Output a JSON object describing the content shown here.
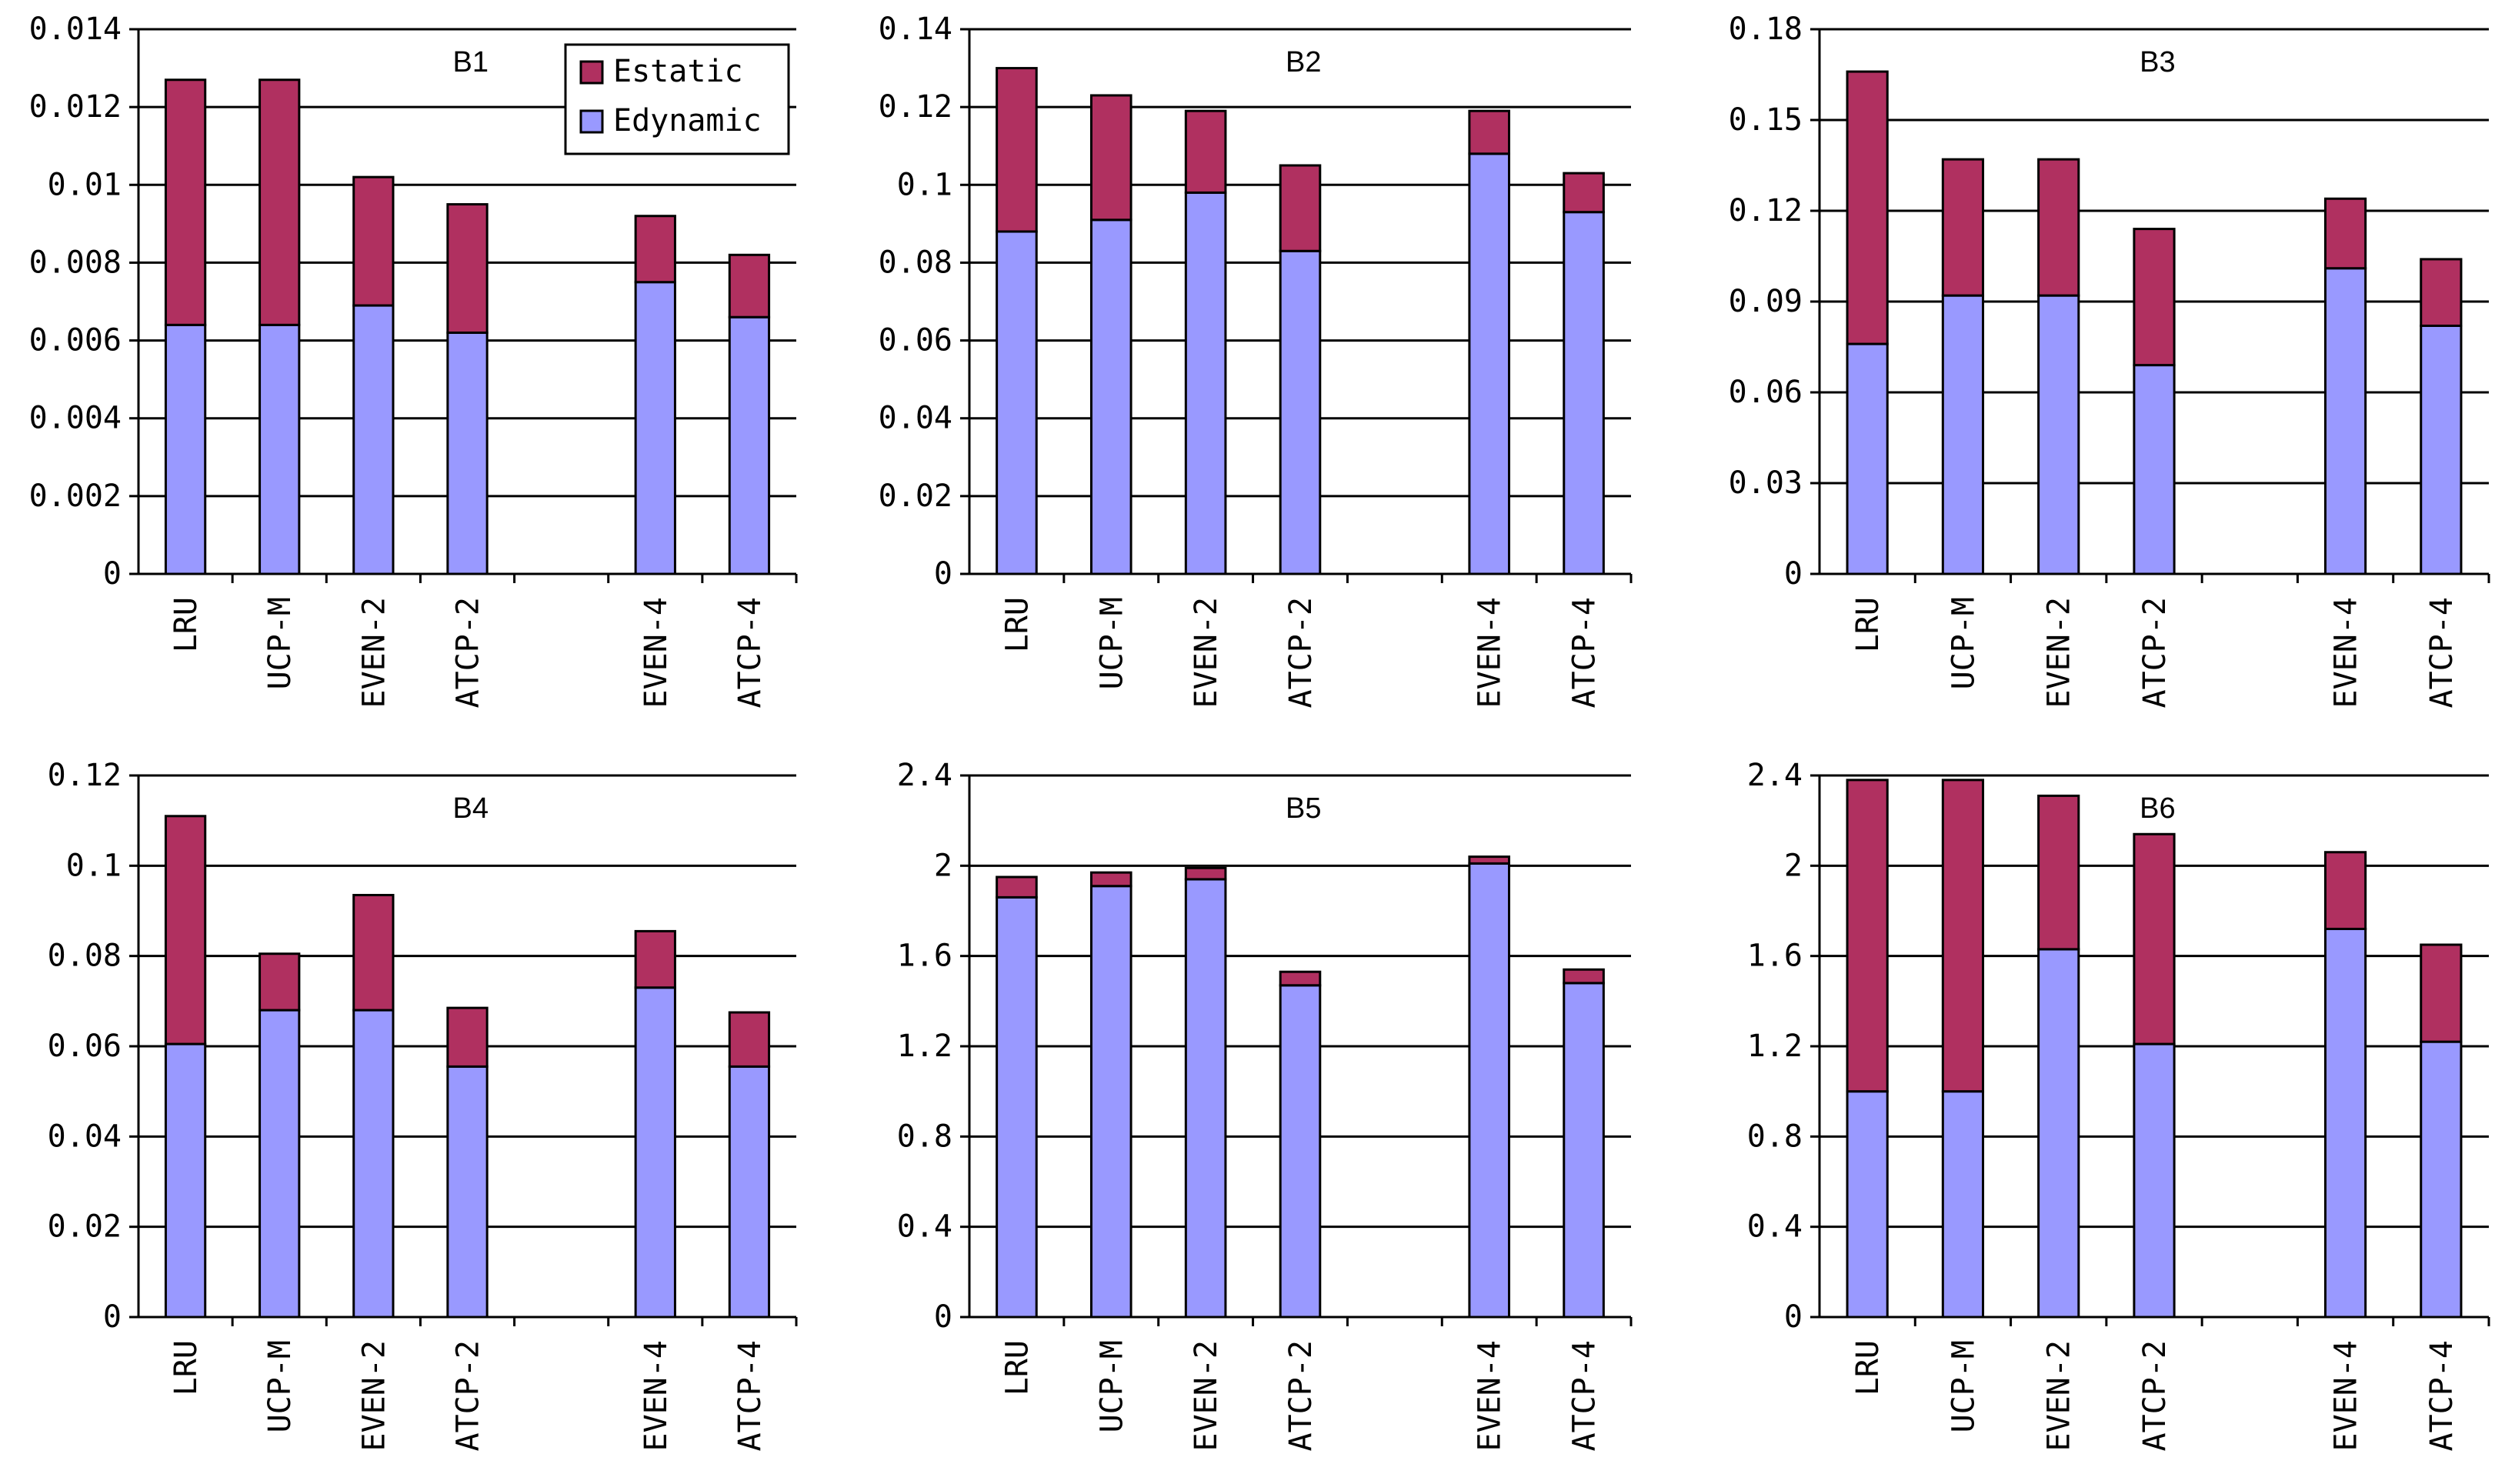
{
  "colors": {
    "static": "#b03060",
    "dynamic": "#9999ff",
    "axis": "#000000",
    "background": "#ffffff"
  },
  "legend": {
    "items": [
      {
        "label": "Estatic",
        "series": "static"
      },
      {
        "label": "Edynamic",
        "series": "dynamic"
      }
    ],
    "position": "top-right of panel B1"
  },
  "chart_data": [
    {
      "type": "bar",
      "stacked": true,
      "title": "B1",
      "categories": [
        "LRU",
        "UCP-M",
        "EVEN-2",
        "ATCP-2",
        "",
        "EVEN-4",
        "ATCP-4"
      ],
      "series": [
        {
          "name": "Edynamic",
          "values": [
            0.0064,
            0.0064,
            0.0069,
            0.0062,
            null,
            0.0075,
            0.0066
          ]
        },
        {
          "name": "Estatic",
          "values": [
            0.0063,
            0.0063,
            0.0033,
            0.0033,
            null,
            0.0017,
            0.0016
          ]
        }
      ],
      "ylim": [
        0,
        0.014
      ],
      "yticks": [
        0,
        0.002,
        0.004,
        0.006,
        0.008,
        0.01,
        0.012,
        0.014
      ],
      "ytick_labels": [
        "0",
        "0.002",
        "0.004",
        "0.006",
        "0.008",
        "0.01",
        "0.012",
        "0.014"
      ],
      "grid": true,
      "xlabel": "",
      "ylabel": ""
    },
    {
      "type": "bar",
      "stacked": true,
      "title": "B2",
      "categories": [
        "LRU",
        "UCP-M",
        "EVEN-2",
        "ATCP-2",
        "",
        "EVEN-4",
        "ATCP-4"
      ],
      "series": [
        {
          "name": "Edynamic",
          "values": [
            0.088,
            0.091,
            0.098,
            0.083,
            null,
            0.108,
            0.093
          ]
        },
        {
          "name": "Estatic",
          "values": [
            0.042,
            0.032,
            0.021,
            0.022,
            null,
            0.011,
            0.01
          ]
        }
      ],
      "ylim": [
        0,
        0.14
      ],
      "yticks": [
        0,
        0.02,
        0.04,
        0.06,
        0.08,
        0.1,
        0.12,
        0.14
      ],
      "ytick_labels": [
        "0",
        "0.02",
        "0.04",
        "0.06",
        "0.08",
        "0.1",
        "0.12",
        "0.14"
      ],
      "grid": true,
      "xlabel": "",
      "ylabel": ""
    },
    {
      "type": "bar",
      "stacked": true,
      "title": "B3",
      "categories": [
        "LRU",
        "UCP-M",
        "EVEN-2",
        "ATCP-2",
        "",
        "EVEN-4",
        "ATCP-4"
      ],
      "series": [
        {
          "name": "Edynamic",
          "values": [
            0.076,
            0.092,
            0.092,
            0.069,
            null,
            0.101,
            0.082
          ]
        },
        {
          "name": "Estatic",
          "values": [
            0.09,
            0.045,
            0.045,
            0.045,
            null,
            0.023,
            0.022
          ]
        }
      ],
      "ylim": [
        0,
        0.18
      ],
      "yticks": [
        0,
        0.03,
        0.06,
        0.09,
        0.12,
        0.15,
        0.18
      ],
      "ytick_labels": [
        "0",
        "0.03",
        "0.06",
        "0.09",
        "0.12",
        "0.15",
        "0.18"
      ],
      "grid": true,
      "xlabel": "",
      "ylabel": ""
    },
    {
      "type": "bar",
      "stacked": true,
      "title": "B4",
      "categories": [
        "LRU",
        "UCP-M",
        "EVEN-2",
        "ATCP-2",
        "",
        "EVEN-4",
        "ATCP-4"
      ],
      "series": [
        {
          "name": "Edynamic",
          "values": [
            0.0605,
            0.068,
            0.068,
            0.0555,
            null,
            0.073,
            0.0555
          ]
        },
        {
          "name": "Estatic",
          "values": [
            0.0505,
            0.0125,
            0.0255,
            0.013,
            null,
            0.0125,
            0.012
          ]
        }
      ],
      "ylim": [
        0,
        0.12
      ],
      "yticks": [
        0,
        0.02,
        0.04,
        0.06,
        0.08,
        0.1,
        0.12
      ],
      "ytick_labels": [
        "0",
        "0.02",
        "0.04",
        "0.06",
        "0.08",
        "0.1",
        "0.12"
      ],
      "grid": true,
      "xlabel": "",
      "ylabel": ""
    },
    {
      "type": "bar",
      "stacked": true,
      "title": "B5",
      "categories": [
        "LRU",
        "UCP-M",
        "EVEN-2",
        "ATCP-2",
        "",
        "EVEN-4",
        "ATCP-4"
      ],
      "series": [
        {
          "name": "Edynamic",
          "values": [
            1.86,
            1.91,
            1.94,
            1.47,
            null,
            2.01,
            1.48
          ]
        },
        {
          "name": "Estatic",
          "values": [
            0.09,
            0.06,
            0.05,
            0.06,
            null,
            0.03,
            0.06
          ]
        }
      ],
      "ylim": [
        0,
        2.4
      ],
      "yticks": [
        0,
        0.4,
        0.8,
        1.2,
        1.6,
        2,
        2.4
      ],
      "ytick_labels": [
        "0",
        "0.4",
        "0.8",
        "1.2",
        "1.6",
        "2",
        "2.4"
      ],
      "grid": true,
      "xlabel": "",
      "ylabel": ""
    },
    {
      "type": "bar",
      "stacked": true,
      "title": "B6",
      "categories": [
        "LRU",
        "UCP-M",
        "EVEN-2",
        "ATCP-2",
        "",
        "EVEN-4",
        "ATCP-4"
      ],
      "series": [
        {
          "name": "Edynamic",
          "values": [
            1.0,
            1.0,
            1.63,
            1.21,
            null,
            1.72,
            1.22
          ]
        },
        {
          "name": "Estatic",
          "values": [
            1.38,
            1.38,
            0.68,
            0.93,
            null,
            0.34,
            0.43
          ]
        }
      ],
      "ylim": [
        0,
        2.4
      ],
      "yticks": [
        0,
        0.4,
        0.8,
        1.2,
        1.6,
        2,
        2.4
      ],
      "ytick_labels": [
        "0",
        "0.4",
        "0.8",
        "1.2",
        "1.6",
        "2",
        "2.4"
      ],
      "grid": true,
      "xlabel": "",
      "ylabel": ""
    }
  ]
}
